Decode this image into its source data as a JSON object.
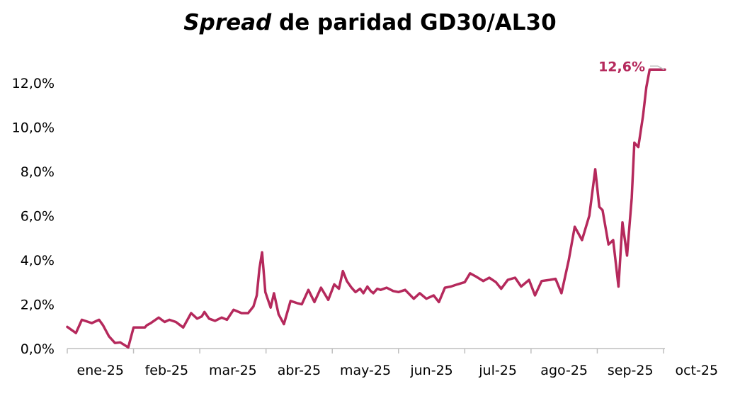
{
  "chart_data": {
    "type": "line",
    "title_emphasis": "Spread",
    "title_rest": " de paridad GD30/AL30",
    "xlabel": "",
    "ylabel": "",
    "ylim": [
      0,
      12.6
    ],
    "yticks": [
      "0,0%",
      "2,0%",
      "4,0%",
      "6,0%",
      "8,0%",
      "10,0%",
      "12,0%"
    ],
    "ytick_values": [
      0,
      2,
      4,
      6,
      8,
      10,
      12
    ],
    "x_categories": [
      "ene-25",
      "feb-25",
      "mar-25",
      "abr-25",
      "may-25",
      "jun-25",
      "jul-25",
      "ago-25",
      "sep-25",
      "oct-25"
    ],
    "grid": false,
    "legend": "none",
    "line_color": "#b5295c",
    "end_label": "12,6%",
    "series": [
      {
        "x": [
          0.0,
          0.13,
          0.22,
          0.37,
          0.48,
          0.54,
          0.63,
          0.72,
          0.8,
          0.92,
          1.0,
          1.17,
          1.2,
          1.26,
          1.38,
          1.47,
          1.54,
          1.64,
          1.75,
          1.87,
          1.96,
          2.03,
          2.07,
          2.14,
          2.23,
          2.33,
          2.41,
          2.51,
          2.63,
          2.73,
          2.81,
          2.86,
          2.9,
          2.94,
          2.99,
          3.07,
          3.12,
          3.19,
          3.27,
          3.37,
          3.47,
          3.54,
          3.64,
          3.73,
          3.83,
          3.94,
          4.03,
          4.1,
          4.16,
          4.22,
          4.29,
          4.35,
          4.42,
          4.47,
          4.53,
          4.58,
          4.62,
          4.68,
          4.73,
          4.82,
          4.92,
          5.0,
          5.1,
          5.23,
          5.32,
          5.42,
          5.53,
          5.61,
          5.7,
          5.79,
          5.89,
          6.0,
          6.08,
          6.17,
          6.28,
          6.37,
          6.47,
          6.55,
          6.65,
          6.76,
          6.85,
          6.97,
          7.06,
          7.16,
          7.28,
          7.37,
          7.46,
          7.57,
          7.66,
          7.77,
          7.88,
          7.97,
          8.03,
          8.08,
          8.17,
          8.24,
          8.32,
          8.38,
          8.45,
          8.52,
          8.56,
          8.62,
          8.69,
          8.74,
          8.79,
          8.82,
          8.86,
          8.91,
          8.96,
          9.0,
          9.03
        ],
        "values": [
          0.98,
          0.7,
          1.3,
          1.15,
          1.3,
          1.05,
          0.55,
          0.25,
          0.28,
          0.05,
          0.95,
          0.95,
          1.05,
          1.15,
          1.4,
          1.2,
          1.3,
          1.2,
          0.95,
          1.6,
          1.35,
          1.45,
          1.65,
          1.35,
          1.25,
          1.4,
          1.3,
          1.75,
          1.6,
          1.6,
          1.9,
          2.4,
          3.6,
          4.35,
          2.55,
          1.85,
          2.5,
          1.55,
          1.1,
          2.15,
          2.05,
          2.0,
          2.65,
          2.1,
          2.75,
          2.2,
          2.9,
          2.7,
          3.5,
          3.05,
          2.75,
          2.55,
          2.7,
          2.5,
          2.8,
          2.6,
          2.5,
          2.7,
          2.65,
          2.75,
          2.6,
          2.55,
          2.65,
          2.25,
          2.5,
          2.25,
          2.4,
          2.1,
          2.75,
          2.8,
          2.9,
          3.0,
          3.4,
          3.25,
          3.05,
          3.2,
          3.0,
          2.7,
          3.1,
          3.2,
          2.8,
          3.1,
          2.4,
          3.05,
          3.1,
          3.15,
          2.5,
          4.0,
          5.5,
          4.9,
          6.0,
          8.1,
          6.4,
          6.25,
          4.7,
          4.9,
          2.8,
          5.7,
          4.2,
          6.8,
          9.3,
          9.1,
          10.5,
          11.8,
          12.6,
          12.6,
          12.6,
          12.6,
          12.6,
          12.6,
          12.6
        ]
      }
    ]
  }
}
